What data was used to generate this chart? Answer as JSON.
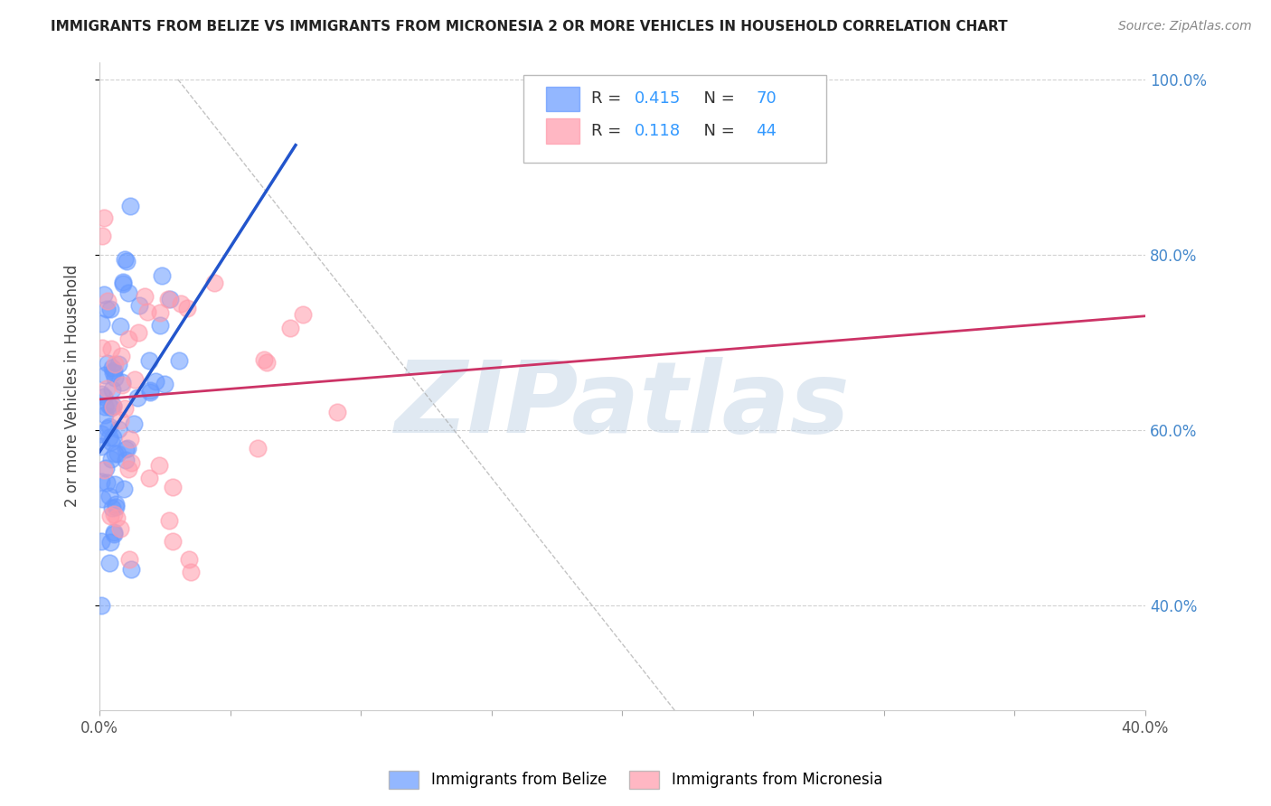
{
  "title": "IMMIGRANTS FROM BELIZE VS IMMIGRANTS FROM MICRONESIA 2 OR MORE VEHICLES IN HOUSEHOLD CORRELATION CHART",
  "source": "Source: ZipAtlas.com",
  "ylabel": "2 or more Vehicles in Household",
  "xlim": [
    0.0,
    0.4
  ],
  "ylim": [
    0.28,
    1.02
  ],
  "xtick_positions": [
    0.0,
    0.05,
    0.1,
    0.15,
    0.2,
    0.25,
    0.3,
    0.35,
    0.4
  ],
  "xtick_labels": [
    "0.0%",
    "",
    "",
    "",
    "",
    "",
    "",
    "",
    "40.0%"
  ],
  "ytick_positions": [
    0.4,
    0.6,
    0.8,
    1.0
  ],
  "ytick_labels": [
    "40.0%",
    "60.0%",
    "80.0%",
    "100.0%"
  ],
  "belize_color": "#6699ff",
  "micronesia_color": "#ff99aa",
  "belize_line_color": "#2255cc",
  "micronesia_line_color": "#cc3366",
  "belize_R": 0.415,
  "belize_N": 70,
  "micronesia_R": 0.118,
  "micronesia_N": 44,
  "watermark": "ZIPatlas",
  "legend_label_belize": "Immigrants from Belize",
  "legend_label_micronesia": "Immigrants from Micronesia",
  "belize_line_x": [
    0.0,
    0.075
  ],
  "belize_line_y": [
    0.575,
    0.925
  ],
  "micronesia_line_x": [
    0.0,
    0.4
  ],
  "micronesia_line_y": [
    0.635,
    0.73
  ],
  "ref_line_x": [
    0.03,
    0.22
  ],
  "ref_line_y": [
    1.0,
    0.28
  ],
  "grid_color": "#cccccc",
  "grid_linestyle": "--",
  "scatter_size": 180,
  "scatter_alpha": 0.55
}
